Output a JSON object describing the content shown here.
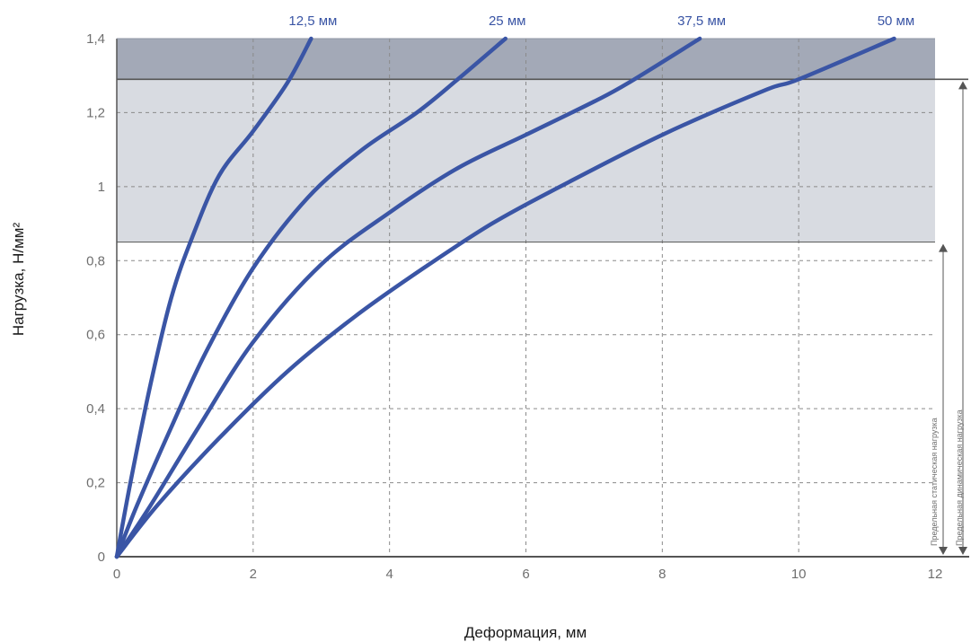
{
  "chart_data": {
    "type": "line",
    "title": "",
    "xlabel": "Деформация, мм",
    "ylabel": "Нагрузка, Н/мм²",
    "xlim": [
      0,
      12
    ],
    "ylim": [
      0,
      1.4
    ],
    "x_ticks": [
      "0",
      "2",
      "4",
      "6",
      "8",
      "10",
      "12"
    ],
    "y_ticks": [
      "0",
      "0,2",
      "0,4",
      "0,6",
      "0,8",
      "1",
      "1,2",
      "1,4"
    ],
    "grid": true,
    "bands": [
      {
        "from": 0.85,
        "to": 1.29,
        "color": "#d8dbe1"
      },
      {
        "from": 1.29,
        "to": 1.4,
        "color": "#a3a9b7"
      }
    ],
    "limits": [
      {
        "name": "Предельная статическая нагрузка",
        "value": 0.85
      },
      {
        "name": "Предельная динамическая нагрузка",
        "value": 1.29
      }
    ],
    "series": [
      {
        "name": "12,5 мм",
        "x": [
          0,
          0.2,
          0.5,
          0.8,
          1.1,
          1.5,
          2.0,
          2.5,
          2.85
        ],
        "y": [
          0,
          0.2,
          0.47,
          0.7,
          0.86,
          1.03,
          1.15,
          1.28,
          1.4
        ]
      },
      {
        "name": "25 мм",
        "x": [
          0,
          0.3,
          0.8,
          1.3,
          2.0,
          2.8,
          3.6,
          4.4,
          5.0,
          5.7
        ],
        "y": [
          0,
          0.14,
          0.35,
          0.55,
          0.78,
          0.97,
          1.1,
          1.2,
          1.29,
          1.4
        ]
      },
      {
        "name": "37,5 мм",
        "x": [
          0,
          0.5,
          1.2,
          2.0,
          3.0,
          4.0,
          5.0,
          6.0,
          7.0,
          7.5,
          8.55
        ],
        "y": [
          0,
          0.14,
          0.35,
          0.58,
          0.79,
          0.93,
          1.05,
          1.14,
          1.23,
          1.28,
          1.4
        ]
      },
      {
        "name": "50 мм",
        "x": [
          0,
          0.6,
          1.5,
          2.5,
          3.5,
          4.5,
          5.5,
          6.5,
          8.0,
          9.5,
          10.0,
          11.4
        ],
        "y": [
          0,
          0.14,
          0.32,
          0.5,
          0.65,
          0.78,
          0.9,
          1.0,
          1.14,
          1.26,
          1.29,
          1.4
        ]
      }
    ],
    "colors": {
      "line": "#3a55a5",
      "series_label": "#3a55a5",
      "grid": "#8a8a8a",
      "axis": "#555555",
      "limit_arrow": "#555555"
    }
  }
}
